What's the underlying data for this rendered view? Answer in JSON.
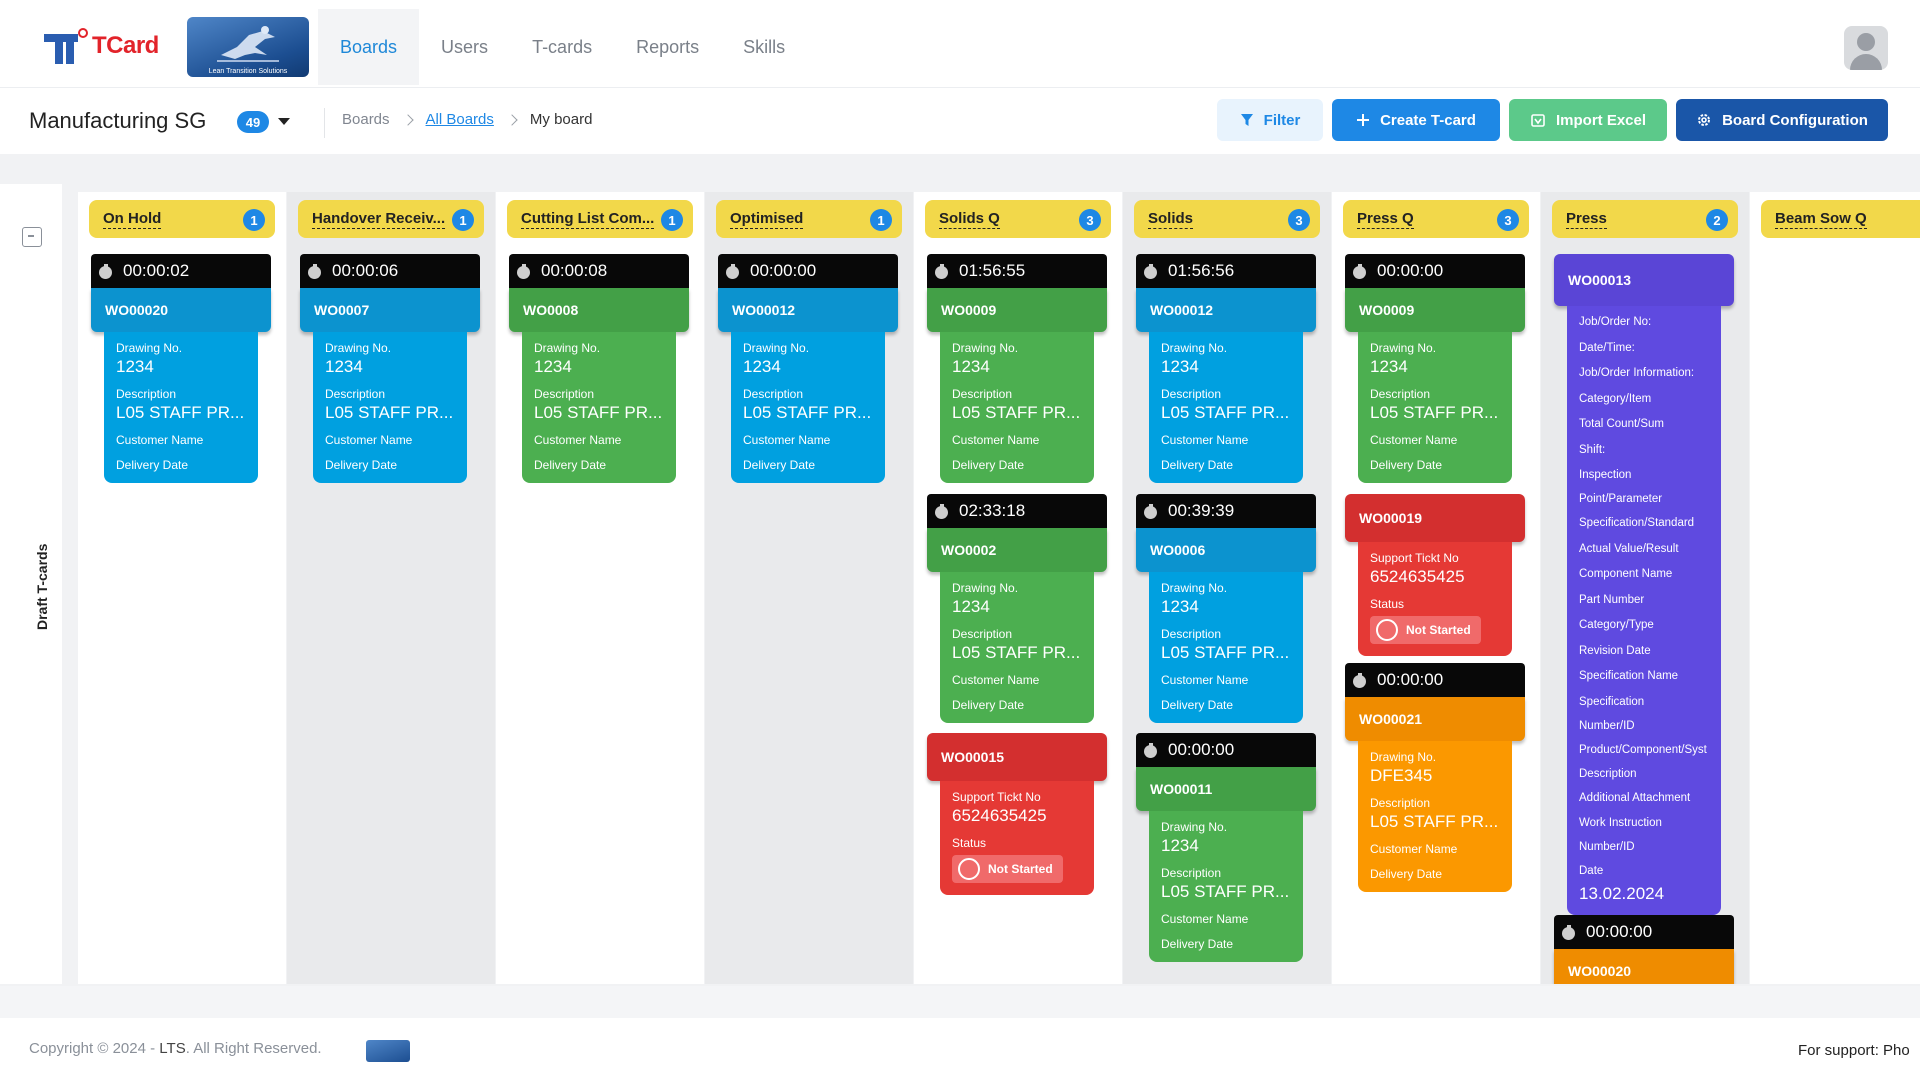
{
  "brand": {
    "name": "TCard",
    "partner_caption": "Lean Transition Solutions"
  },
  "nav": {
    "tabs": [
      "Boards",
      "Users",
      "T-cards",
      "Reports",
      "Skills"
    ],
    "active": "Boards"
  },
  "board": {
    "title": "Manufacturing SG",
    "count": "49"
  },
  "breadcrumb": {
    "root": "Boards",
    "link": "All Boards",
    "current": "My board"
  },
  "actions": {
    "filter": "Filter",
    "create": "Create T-card",
    "import": "Import Excel",
    "config": "Board Configuration"
  },
  "draft": {
    "label": "Draft T-cards"
  },
  "colors": {
    "primary": "#1e88e5",
    "lane_header": "#f2d84a",
    "blue_card": "#00a0e0",
    "green_card": "#4caf50",
    "red_card": "#e53935",
    "orange_card": "#fb9800",
    "purple_card": "#5f4ae0",
    "timer": "#080808"
  },
  "card_labels": {
    "drawing": "Drawing No.",
    "description": "Description",
    "customer": "Customer Name",
    "delivery": "Delivery Date",
    "ticket": "Support Tickt No",
    "status": "Status"
  },
  "lanes": [
    {
      "name": "On Hold",
      "count": "1",
      "cards": [
        {
          "timer": "00:00:02",
          "id": "WO00020",
          "drawing": "1234",
          "description": "L05 STAFF PR..."
        }
      ]
    },
    {
      "name": "Handover Receiv...",
      "count": "1",
      "cards": [
        {
          "timer": "00:00:06",
          "id": "WO0007",
          "drawing": "1234",
          "description": "L05 STAFF PR..."
        }
      ]
    },
    {
      "name": "Cutting List Com...",
      "count": "1",
      "cards": [
        {
          "timer": "00:00:08",
          "id": "WO0008",
          "drawing": "1234",
          "description": "L05 STAFF PR..."
        }
      ]
    },
    {
      "name": "Optimised",
      "count": "1",
      "cards": [
        {
          "timer": "00:00:00",
          "id": "WO00012",
          "drawing": "1234",
          "description": "L05 STAFF PR..."
        }
      ]
    },
    {
      "name": "Solids Q",
      "count": "3",
      "cards": [
        {
          "timer": "01:56:55",
          "id": "WO0009",
          "drawing": "1234",
          "description": "L05 STAFF PR..."
        },
        {
          "timer": "02:33:18",
          "id": "WO0002",
          "drawing": "1234",
          "description": "L05 STAFF PR..."
        },
        {
          "id": "WO00015",
          "ticket": "6524635425",
          "status": "Not Started"
        }
      ]
    },
    {
      "name": "Solids",
      "count": "3",
      "cards": [
        {
          "timer": "01:56:56",
          "id": "WO00012",
          "drawing": "1234",
          "description": "L05 STAFF PR..."
        },
        {
          "timer": "00:39:39",
          "id": "WO0006",
          "drawing": "1234",
          "description": "L05 STAFF PR..."
        },
        {
          "timer": "00:00:00",
          "id": "WO00011",
          "drawing": "1234",
          "description": "L05 STAFF PR..."
        }
      ]
    },
    {
      "name": "Press Q",
      "count": "3",
      "cards": [
        {
          "timer": "00:00:00",
          "id": "WO0009",
          "drawing": "1234",
          "description": "L05 STAFF PR..."
        },
        {
          "id": "WO00019",
          "ticket": "6524635425",
          "status": "Not Started"
        },
        {
          "timer": "00:00:00",
          "id": "WO00021",
          "drawing": "DFE345",
          "description": "L05 STAFF PR..."
        }
      ]
    },
    {
      "name": "Press",
      "count": "2",
      "cards": [
        {
          "id": "WO00013",
          "fields": [
            "Job/Order No:",
            "Date/Time:",
            "Job/Order Information:",
            "Category/Item",
            "Total Count/Sum",
            "Shift:",
            "Inspection",
            "Point/Parameter",
            "Specification/Standard",
            "Actual Value/Result",
            "Component Name",
            "Part Number",
            "Category/Type",
            "Revision Date",
            "Specification Name",
            "Specification",
            "Number/ID",
            "Product/Component/Syst",
            "Description",
            "Additional Attachment",
            "Work Instruction",
            "Number/ID",
            "Date"
          ],
          "date_value": "13.02.2024"
        },
        {
          "timer": "00:00:00",
          "id": "WO00020"
        }
      ]
    },
    {
      "name": "Beam Sow Q",
      "count": ""
    }
  ],
  "footer": {
    "copyright": "Copyright © 2024 - ",
    "company": "LTS",
    "rights": ". All Right Reserved.",
    "support": "For support: Pho"
  }
}
